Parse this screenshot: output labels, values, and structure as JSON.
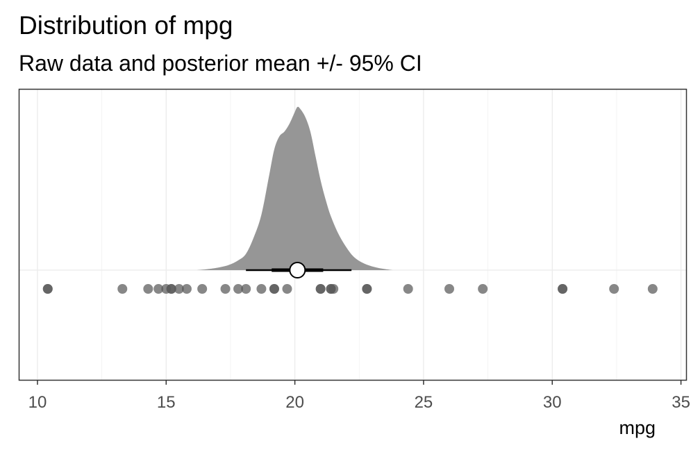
{
  "chart_data": {
    "type": "scatter",
    "title": "Distribution of mpg",
    "subtitle": "Raw data and posterior mean +/- 95% CI",
    "xlabel": "mpg",
    "ylabel": "",
    "xlim": [
      9.3,
      35.2
    ],
    "x_ticks": [
      10,
      15,
      20,
      25,
      30,
      35
    ],
    "grid": true,
    "legend": "none",
    "raw_points": [
      21.0,
      21.0,
      22.8,
      21.4,
      18.7,
      18.1,
      14.3,
      24.4,
      22.8,
      19.2,
      17.8,
      16.4,
      17.3,
      15.2,
      10.4,
      10.4,
      14.7,
      32.4,
      30.4,
      33.9,
      21.5,
      15.5,
      15.2,
      13.3,
      19.2,
      27.3,
      26.0,
      30.4,
      15.8,
      19.7,
      15.0,
      21.4
    ],
    "posterior_mean": 20.1,
    "interval_66": [
      19.1,
      21.1
    ],
    "interval_95": [
      18.1,
      22.2
    ],
    "posterior_density": {
      "x": [
        16.2,
        16.8,
        17.4,
        17.8,
        18.1,
        18.4,
        18.7,
        19.0,
        19.2,
        19.4,
        19.6,
        19.8,
        20.0,
        20.1,
        20.2,
        20.4,
        20.6,
        20.8,
        21.0,
        21.2,
        21.4,
        21.7,
        22.0,
        22.3,
        22.7,
        23.2,
        23.8
      ],
      "y": [
        0.0,
        0.01,
        0.03,
        0.06,
        0.1,
        0.2,
        0.34,
        0.58,
        0.74,
        0.82,
        0.85,
        0.9,
        0.97,
        1.0,
        0.99,
        0.94,
        0.85,
        0.7,
        0.55,
        0.43,
        0.33,
        0.22,
        0.14,
        0.08,
        0.04,
        0.015,
        0.0
      ]
    }
  },
  "colors": {
    "density_fill": "#969696",
    "point_fill": "#595959",
    "interval": "#000000",
    "mean_fill": "#ffffff",
    "panel_border": "#333333",
    "grid": "#ebebeb"
  }
}
